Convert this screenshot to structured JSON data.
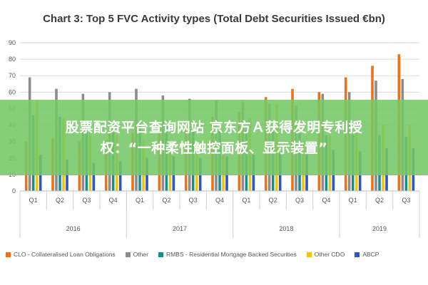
{
  "chart_data": {
    "type": "bar",
    "title": "Chart 3: Top 5 FVC Activity types (Total Debt Securities Issued €bn)",
    "xlabel": "",
    "ylabel": "",
    "ylim": [
      0,
      90
    ],
    "yticks": [
      0,
      10,
      20,
      30,
      40,
      50,
      60,
      70,
      80,
      90
    ],
    "grid": true,
    "legend_position": "bottom",
    "categories": [
      "Q1",
      "Q2",
      "Q3",
      "Q4",
      "Q1",
      "Q2",
      "Q3",
      "Q4",
      "Q1",
      "Q2",
      "Q3",
      "Q4",
      "Q1",
      "Q2",
      "Q3"
    ],
    "groups": [
      {
        "label": "2016",
        "span": 4
      },
      {
        "label": "2017",
        "span": 4
      },
      {
        "label": "2018",
        "span": 4
      },
      {
        "label": "2019",
        "span": 3
      }
    ],
    "series": [
      {
        "name": "CLO - Collateralised Loan Obligations",
        "color": "#e8731c",
        "values": [
          30,
          32,
          30,
          31,
          35,
          38,
          40,
          45,
          48,
          57,
          62,
          60,
          69,
          76,
          83
        ]
      },
      {
        "name": "Other",
        "color": "#8c8c8c",
        "values": [
          69,
          62,
          59,
          60,
          62,
          58,
          56,
          55,
          54,
          53,
          52,
          59,
          60,
          67,
          68
        ]
      },
      {
        "name": "RMBS - Residential Mortgage Backed Securities",
        "color": "#1a8b8f",
        "values": [
          46,
          45,
          42,
          41,
          42,
          40,
          38,
          39,
          37,
          36,
          35,
          34,
          34,
          34,
          33
        ]
      },
      {
        "name": "Other CDO",
        "color": "#f0c419",
        "values": [
          55,
          44,
          34,
          34,
          31,
          27,
          28,
          27,
          44,
          53,
          29,
          34,
          37,
          40,
          40
        ]
      },
      {
        "name": "ABCP",
        "color": "#2a56c6",
        "values": [
          22,
          19,
          17,
          18,
          20,
          21,
          20,
          21,
          22,
          23,
          22,
          25,
          24,
          26,
          26
        ]
      }
    ]
  },
  "overlay": {
    "line1": "股票配资平台查询网站 京东方Ａ获得发明专利授",
    "line2": "权：“一种柔性触控面板、显示装置”"
  }
}
